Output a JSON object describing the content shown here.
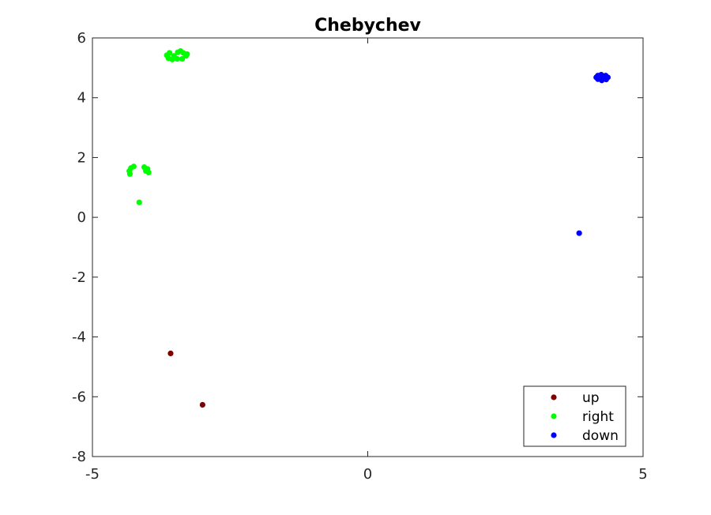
{
  "chart_data": {
    "type": "scatter",
    "title": "Chebychev",
    "xlabel": "",
    "ylabel": "",
    "xlim": [
      -5,
      5
    ],
    "ylim": [
      -8,
      6
    ],
    "xticks": [
      "-5",
      "0",
      "5"
    ],
    "yticks": [
      "-8",
      "-6",
      "-4",
      "-2",
      "0",
      "2",
      "4",
      "6"
    ],
    "grid": false,
    "legend_position": "bottom-right",
    "series": [
      {
        "name": "up",
        "color": "#7f0000",
        "points": [
          [
            -3.58,
            -4.55
          ],
          [
            -3.0,
            -6.27
          ]
        ]
      },
      {
        "name": "right",
        "color": "#00ff00",
        "points": [
          [
            -3.65,
            5.42
          ],
          [
            -3.6,
            5.5
          ],
          [
            -3.52,
            5.4
          ],
          [
            -3.46,
            5.3
          ],
          [
            -3.37,
            5.3
          ],
          [
            -3.3,
            5.4
          ],
          [
            -3.35,
            5.5
          ],
          [
            -3.45,
            5.52
          ],
          [
            -3.62,
            5.32
          ],
          [
            -3.55,
            5.28
          ],
          [
            -3.28,
            5.46
          ],
          [
            -3.4,
            5.56
          ],
          [
            -4.33,
            1.55
          ],
          [
            -4.3,
            1.65
          ],
          [
            -4.25,
            1.7
          ],
          [
            -4.32,
            1.45
          ],
          [
            -4.06,
            1.68
          ],
          [
            -4.03,
            1.55
          ],
          [
            -3.98,
            1.5
          ],
          [
            -4.0,
            1.62
          ],
          [
            -4.15,
            0.5
          ]
        ]
      },
      {
        "name": "down",
        "color": "#0000ff",
        "points": [
          [
            4.15,
            4.68
          ],
          [
            4.18,
            4.74
          ],
          [
            4.24,
            4.77
          ],
          [
            4.32,
            4.74
          ],
          [
            4.36,
            4.68
          ],
          [
            4.33,
            4.61
          ],
          [
            4.25,
            4.58
          ],
          [
            4.18,
            4.62
          ],
          [
            4.27,
            4.69
          ],
          [
            3.84,
            -0.53
          ]
        ]
      }
    ]
  }
}
